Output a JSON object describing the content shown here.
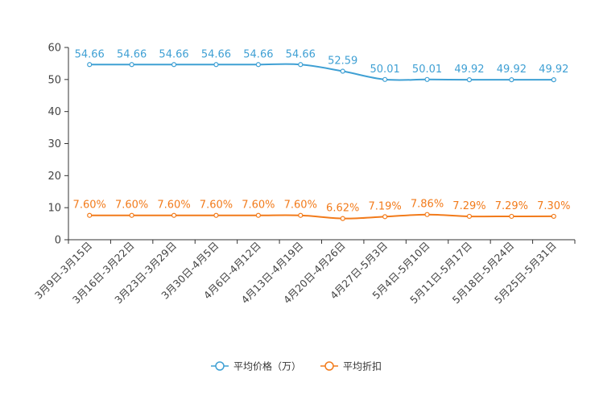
{
  "chart_data": {
    "type": "line",
    "title": "",
    "xlabel": "",
    "ylabel": "",
    "ylim": [
      0,
      60
    ],
    "yticks": [
      0,
      10,
      20,
      30,
      40,
      50,
      60
    ],
    "categories": [
      "3月9日-3月15日",
      "3月16日-3月22日",
      "3月23日-3月29日",
      "3月30日-4月5日",
      "4月6日-4月12日",
      "4月13日-4月19日",
      "4月20日-4月26日",
      "4月27日-5月3日",
      "5月4日-5月10日",
      "5月11日-5月17日",
      "5月18日-5月24日",
      "5月25日-5月31日"
    ],
    "series": [
      {
        "name": "平均价格（万）",
        "color": "#3fa0d4",
        "values": [
          54.66,
          54.66,
          54.66,
          54.66,
          54.66,
          54.66,
          52.59,
          50.01,
          50.01,
          49.92,
          49.92,
          49.92
        ],
        "labels": [
          "54.66",
          "54.66",
          "54.66",
          "54.66",
          "54.66",
          "54.66",
          "52.59",
          "50.01",
          "50.01",
          "49.92",
          "49.92",
          "49.92"
        ]
      },
      {
        "name": "平均折扣",
        "color": "#f27b1b",
        "values": [
          7.6,
          7.6,
          7.6,
          7.6,
          7.6,
          7.6,
          6.62,
          7.19,
          7.86,
          7.29,
          7.29,
          7.3
        ],
        "labels": [
          "7.60%",
          "7.60%",
          "7.60%",
          "7.60%",
          "7.60%",
          "7.60%",
          "6.62%",
          "7.19%",
          "7.86%",
          "7.29%",
          "7.29%",
          "7.30%"
        ]
      }
    ],
    "legend_position": "bottom-center",
    "grid": false
  }
}
